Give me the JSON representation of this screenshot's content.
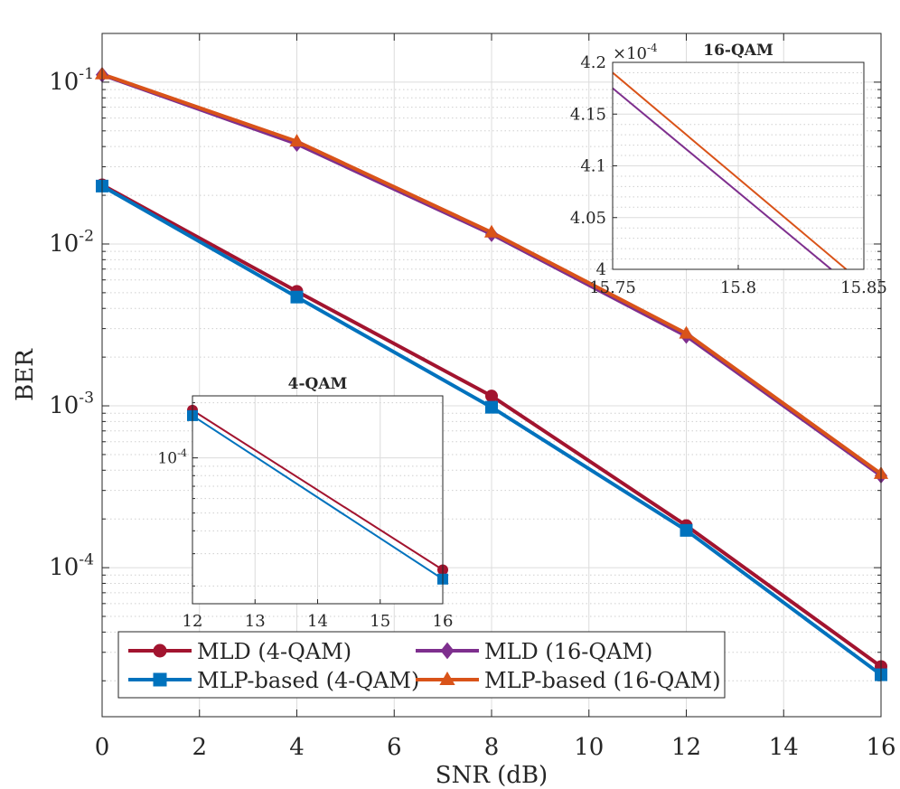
{
  "chart_data": [
    {
      "type": "line",
      "scale_y": "log",
      "xlabel": "SNR (dB)",
      "ylabel": "BER",
      "xlim": [
        0,
        16
      ],
      "ylim": [
        1.2e-05,
        0.2
      ],
      "xticks": [
        0,
        2,
        4,
        6,
        8,
        10,
        12,
        14,
        16
      ],
      "xtick_labels": [
        "0",
        "2",
        "4",
        "6",
        "8",
        "10",
        "12",
        "14",
        "16"
      ],
      "ytick_labels": [
        {
          "base": "10",
          "exp": "-1",
          "value": 0.1
        },
        {
          "base": "10",
          "exp": "-2",
          "value": 0.01
        },
        {
          "base": "10",
          "exp": "-3",
          "value": 0.001
        },
        {
          "base": "10",
          "exp": "-4",
          "value": 0.0001
        }
      ],
      "grid": true,
      "legend_position": "bottom-left",
      "series": [
        {
          "name": "MLD (4-QAM)",
          "color": "#A2142F",
          "marker": "circle",
          "x": [
            0,
            4,
            8,
            12,
            16
          ],
          "y": [
            0.0232,
            0.0051,
            0.00115,
            0.000182,
            2.45e-05
          ]
        },
        {
          "name": "MLD (16-QAM)",
          "color": "#7E2F8E",
          "marker": "diamond",
          "x": [
            0,
            4,
            8,
            12,
            16
          ],
          "y": [
            0.111,
            0.0415,
            0.0115,
            0.0027,
            0.00037
          ]
        },
        {
          "name": "MLP-based (4-QAM)",
          "color": "#0072BD",
          "marker": "square",
          "x": [
            0,
            4,
            8,
            12,
            16
          ],
          "y": [
            0.0228,
            0.0047,
            0.00098,
            0.00017,
            2.18e-05
          ]
        },
        {
          "name": "MLP-based (16-QAM)",
          "color": "#D95319",
          "marker": "triangle",
          "x": [
            0,
            4,
            8,
            12,
            16
          ],
          "y": [
            0.112,
            0.043,
            0.0118,
            0.0028,
            0.00038
          ]
        }
      ]
    },
    {
      "type": "line",
      "title": "16-QAM",
      "scale_y": "linear",
      "xlim": [
        15.75,
        15.85
      ],
      "ylim": [
        4.0,
        4.2
      ],
      "y_multiplier_label": {
        "base": "×10",
        "exp": "-4"
      },
      "xticks": [
        15.75,
        15.8,
        15.85
      ],
      "xtick_labels": [
        "15.75",
        "15.8",
        "15.85"
      ],
      "yticks": [
        4,
        4.05,
        4.1,
        4.15,
        4.2
      ],
      "ytick_labels": [
        "4",
        "4.05",
        "4.1",
        "4.15",
        "4.2"
      ],
      "grid": true,
      "series": [
        {
          "name": "MLD (16-QAM)",
          "color": "#7E2F8E",
          "x": [
            15.75,
            15.837
          ],
          "y": [
            4.175,
            4.0
          ]
        },
        {
          "name": "MLP-based (16-QAM)",
          "color": "#D95319",
          "x": [
            15.75,
            15.843
          ],
          "y": [
            4.19,
            4.0
          ]
        }
      ]
    },
    {
      "type": "line",
      "title": "4-QAM",
      "scale_y": "log",
      "xlim": [
        12,
        16
      ],
      "ylim": [
        1.6e-05,
        0.000218
      ],
      "xticks": [
        12,
        13,
        14,
        15,
        16
      ],
      "xtick_labels": [
        "12",
        "13",
        "14",
        "15",
        "16"
      ],
      "ytick_labels": [
        {
          "base": "10",
          "exp": "-4",
          "value": 0.0001
        }
      ],
      "grid": true,
      "series": [
        {
          "name": "MLD (4-QAM)",
          "color": "#A2142F",
          "marker": "circle",
          "x": [
            12,
            16
          ],
          "y": [
            0.000182,
            2.45e-05
          ]
        },
        {
          "name": "MLP-based (4-QAM)",
          "color": "#0072BD",
          "marker": "square",
          "x": [
            12,
            16
          ],
          "y": [
            0.00017,
            2.18e-05
          ]
        }
      ]
    }
  ]
}
